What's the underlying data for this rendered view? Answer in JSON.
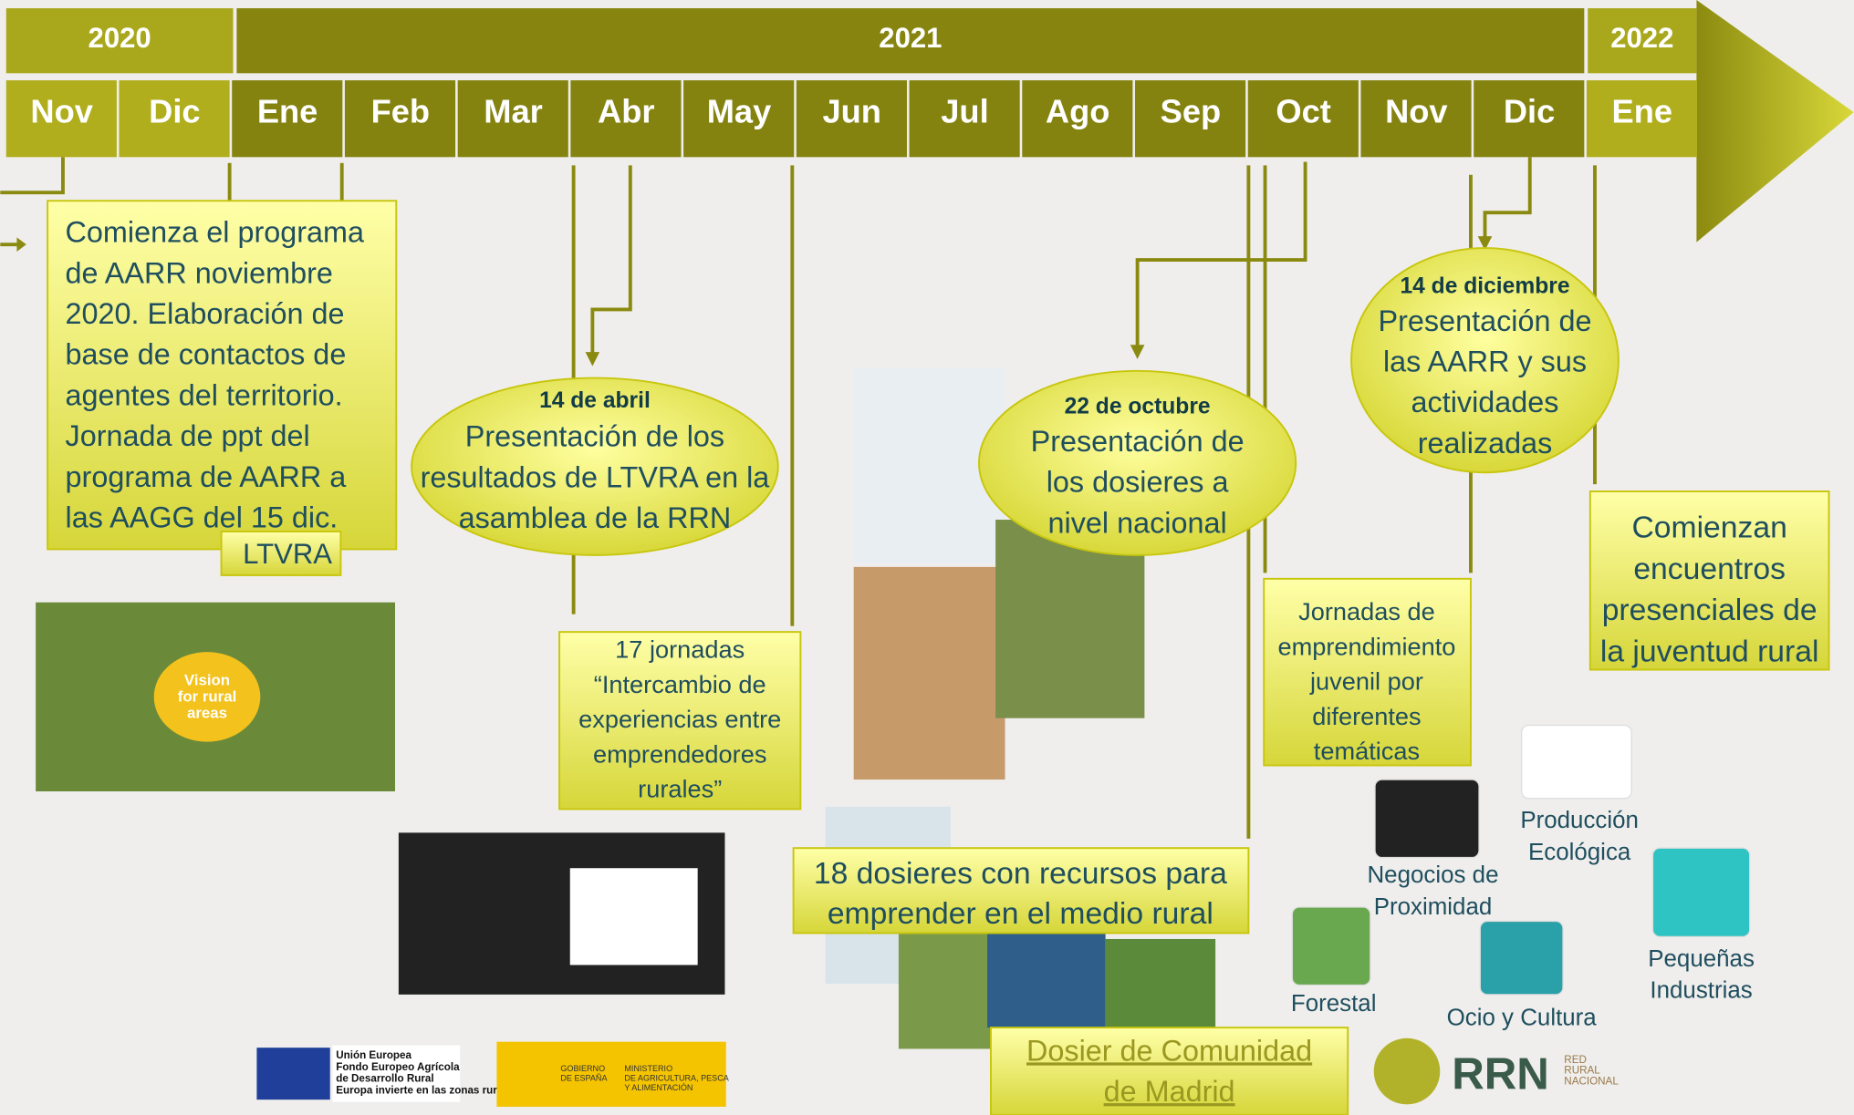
{
  "years": [
    "2020",
    "2021",
    "2022"
  ],
  "months": [
    "Nov",
    "Dic",
    "Ene",
    "Feb",
    "Mar",
    "Abr",
    "May",
    "Jun",
    "Jul",
    "Ago",
    "Sep",
    "Oct",
    "Nov",
    "Dic",
    "Ene"
  ],
  "boxes": [
    {
      "lines": [
        "Comienza el programa",
        "de AARR noviembre",
        "2020. Elaboración de",
        "base de contactos de",
        "agentes del territorio.",
        "Jornada de ppt del",
        "programa de AARR a",
        "las AAGG del 15 dic."
      ],
      "tag": "LTVRA"
    },
    {
      "lines": [
        "17 jornadas",
        "“Intercambio de",
        "experiencias entre",
        "emprendedores",
        "rurales”"
      ]
    },
    {
      "lines": [
        "18 dosieres con recursos para",
        "emprender en el medio rural"
      ]
    },
    {
      "lines": [
        "Jornadas de",
        "emprendimiento",
        "juvenil por",
        "diferentes",
        "temáticas"
      ]
    },
    {
      "lines": [
        "Comienzan",
        "encuentros",
        "presenciales de",
        "la juventud rural"
      ]
    }
  ],
  "events": [
    {
      "date": "14 de abril",
      "lines": [
        "Presentación de los",
        "resultados de LTVRA en la",
        "asamblea de la RRN"
      ]
    },
    {
      "date": "22 de octubre",
      "lines": [
        "Presentación de",
        "los dosieres a",
        "nivel nacional"
      ]
    },
    {
      "date": "14 de diciembre",
      "lines": [
        "Presentación de",
        "las AARR y sus",
        "actividades",
        "realizadas"
      ]
    }
  ],
  "link": {
    "lines": [
      "Dosier de Comunidad",
      "de Madrid"
    ]
  },
  "icons": [
    {
      "lines": [
        "Negocios de",
        "Proximidad"
      ]
    },
    {
      "lines": [
        "Producción",
        "Ecológica"
      ]
    },
    {
      "lines": [
        "Forestal"
      ]
    },
    {
      "lines": [
        "Ocio y Cultura"
      ]
    },
    {
      "lines": [
        "Pequeñas",
        "Industrias"
      ]
    }
  ],
  "photo": {
    "badge": [
      "Vision",
      "for rural",
      "areas"
    ]
  },
  "logos": {
    "eu": [
      "Unión Europea",
      "Fondo Europeo Agrícola",
      "de Desarrollo Rural",
      "Europa invierte en las zonas rurales"
    ],
    "gov": [
      "GOBIERNO",
      "DE ESPAÑA"
    ],
    "ministry": [
      "MINISTERIO",
      "DE AGRICULTURA, PESCA",
      "Y ALIMENTACIÓN"
    ],
    "rrn": "RRN",
    "rrn_name": [
      "RED",
      "RURAL",
      "NACIONAL"
    ]
  }
}
